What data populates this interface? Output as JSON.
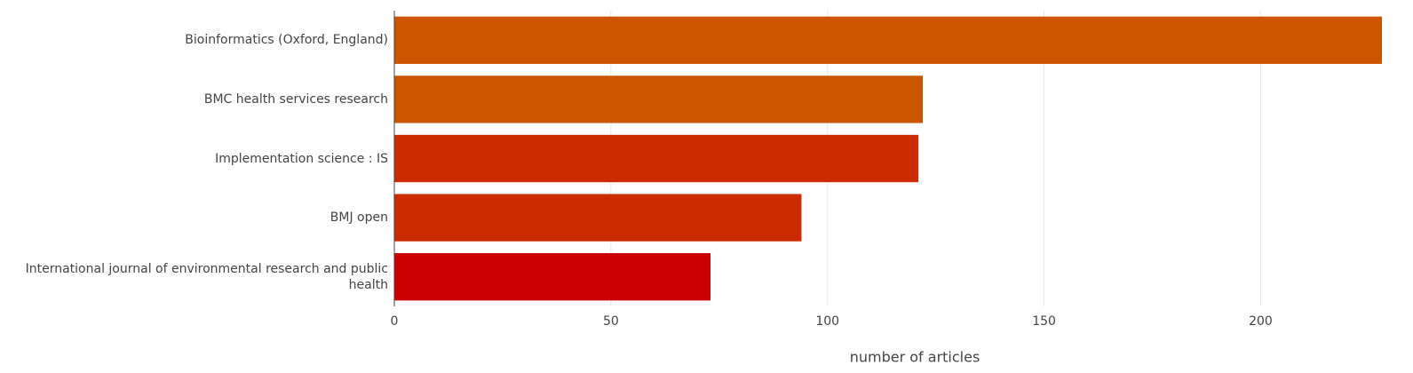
{
  "chart_data": {
    "type": "bar",
    "orientation": "horizontal",
    "categories": [
      "Bioinformatics (Oxford, England)",
      "BMC health services research",
      "Implementation science : IS",
      "BMJ open",
      "International journal of environmental research and public health"
    ],
    "values": [
      228,
      122,
      121,
      94,
      73
    ],
    "colors": [
      "#cc5500",
      "#cc5500",
      "#cc2a00",
      "#cc2a00",
      "#cc0000"
    ],
    "x_label": "number of articles",
    "xlim": [
      0,
      228
    ],
    "xticks": [
      0,
      50,
      100,
      150,
      200
    ],
    "grid": true
  }
}
